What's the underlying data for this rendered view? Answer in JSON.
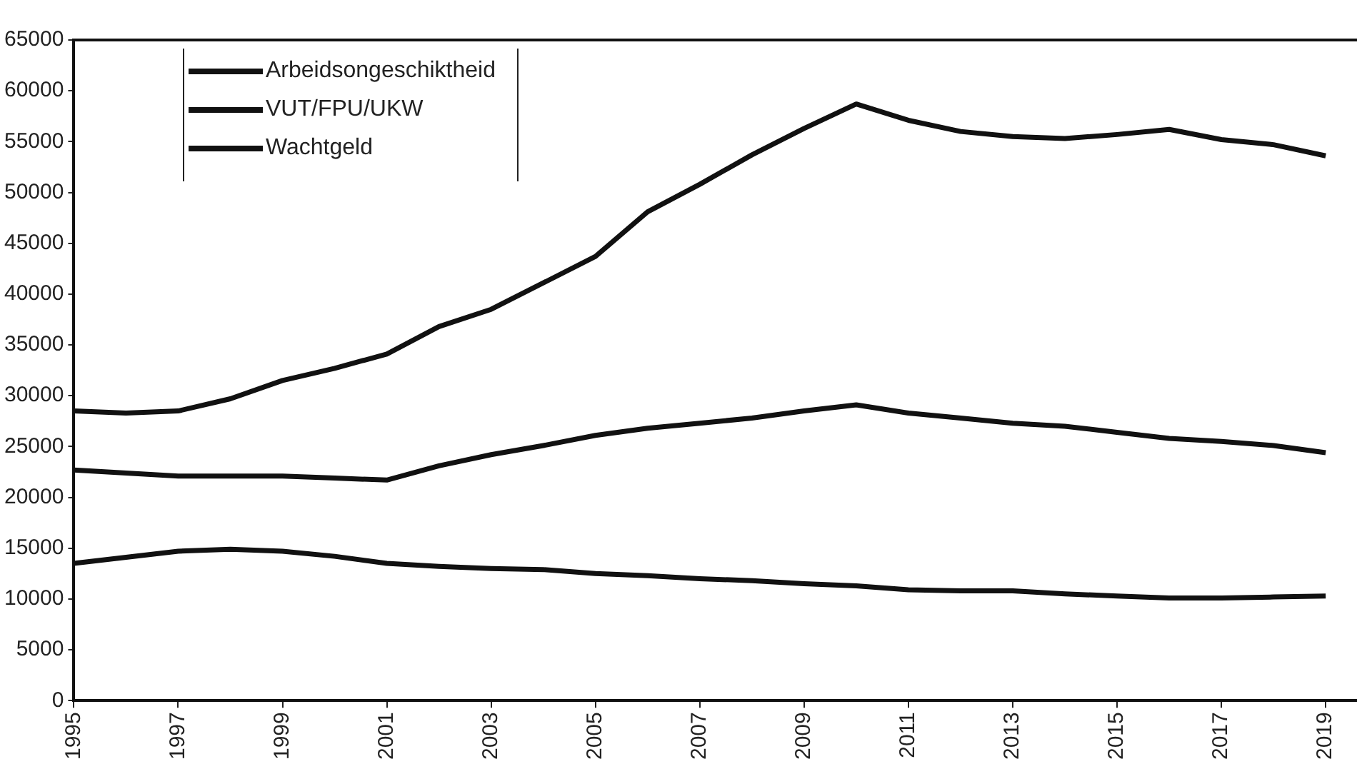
{
  "chart_data": {
    "type": "line",
    "x": [
      1995,
      1996,
      1997,
      1998,
      1999,
      2000,
      2001,
      2002,
      2003,
      2004,
      2005,
      2006,
      2007,
      2008,
      2009,
      2010,
      2011,
      2012,
      2013,
      2014,
      2015,
      2016,
      2017,
      2018,
      2019
    ],
    "series": [
      {
        "name": "Arbeidsongeschiktheid",
        "color": "#111111",
        "values": [
          28500,
          28300,
          28500,
          29700,
          31500,
          32700,
          34100,
          36800,
          38500,
          41100,
          43700,
          48100,
          50800,
          53700,
          56300,
          58700,
          57100,
          56000,
          55500,
          55300,
          55700,
          56200,
          55200,
          54700,
          53600
        ]
      },
      {
        "name": "VUT/FPU/UKW",
        "color": "#111111",
        "values": [
          22700,
          22400,
          22100,
          22100,
          22100,
          21900,
          21700,
          23100,
          24200,
          25100,
          26100,
          26800,
          27300,
          27800,
          28500,
          29100,
          28300,
          27800,
          27300,
          27000,
          26400,
          25800,
          25500,
          25100,
          24400
        ]
      },
      {
        "name": "Wachtgeld",
        "color": "#111111",
        "values": [
          13500,
          14100,
          14700,
          14900,
          14700,
          14200,
          13500,
          13200,
          13000,
          12900,
          12500,
          12300,
          12000,
          11800,
          11500,
          11300,
          10900,
          10800,
          10800,
          10500,
          10300,
          10100,
          10100,
          10200,
          10300
        ]
      }
    ],
    "xlim": [
      1995,
      2019.6
    ],
    "xticks": [
      1995,
      1997,
      1999,
      2001,
      2003,
      2005,
      2007,
      2009,
      2011,
      2013,
      2015,
      2017,
      2019
    ],
    "ylim": [
      0,
      65000
    ],
    "yticks": [
      0,
      5000,
      10000,
      15000,
      20000,
      25000,
      30000,
      35000,
      40000,
      45000,
      50000,
      55000,
      60000,
      65000
    ],
    "grid": false,
    "legend": "top left",
    "marker": "none",
    "line_style": "solid"
  }
}
